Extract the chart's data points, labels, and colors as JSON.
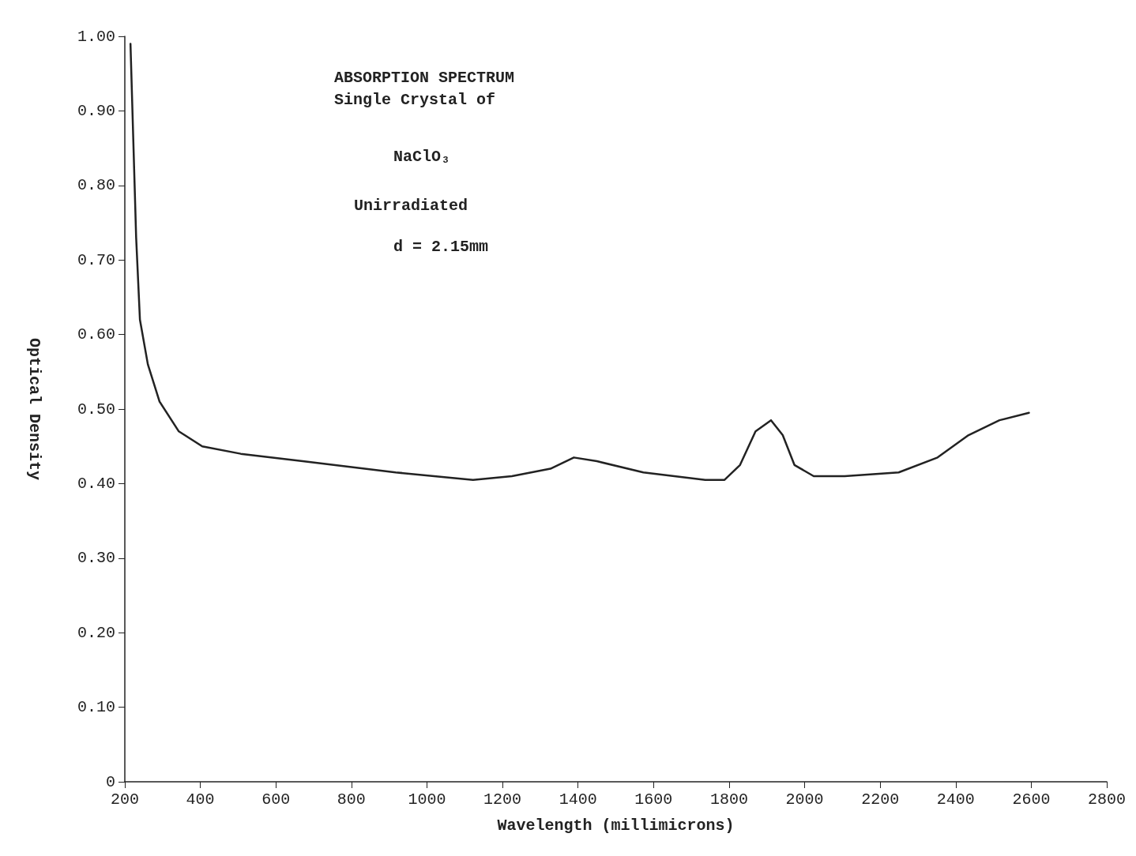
{
  "chart_data": {
    "type": "line",
    "title": "ABSORPTION SPECTRUM",
    "subtitle": "Single Crystal of",
    "annotations": [
      "NaClO₃",
      "Unirradiated",
      "d = 2.15mm"
    ],
    "xlabel": "Wavelength (millimicrons)",
    "ylabel": "Optical Density",
    "x": [
      215,
      230,
      240,
      261,
      292,
      343,
      405,
      507,
      671,
      917,
      1122,
      1225,
      1327,
      1389,
      1450,
      1573,
      1737,
      1788,
      1829,
      1870,
      1911,
      1942,
      1973,
      2024,
      2106,
      2249,
      2352,
      2434,
      2516,
      2594
    ],
    "series": [
      {
        "color": "#222222",
        "values": [
          0.99,
          0.73,
          0.62,
          0.56,
          0.51,
          0.47,
          0.45,
          0.44,
          0.43,
          0.415,
          0.405,
          0.41,
          0.42,
          0.435,
          0.43,
          0.415,
          0.405,
          0.405,
          0.425,
          0.47,
          0.485,
          0.465,
          0.425,
          0.41,
          0.41,
          0.415,
          0.435,
          0.465,
          0.485,
          0.495
        ]
      }
    ],
    "xlim": [
      200,
      2800
    ],
    "xticks": [
      200,
      400,
      600,
      800,
      1000,
      1200,
      1400,
      1600,
      1800,
      2000,
      2200,
      2400,
      2600,
      2800
    ],
    "ylim": [
      0,
      1
    ],
    "yticks": [
      0,
      {
        "value": 0.1,
        "label": "0.10"
      },
      {
        "value": 0.2,
        "label": "0.20"
      },
      {
        "value": 0.3,
        "label": "0.30"
      },
      {
        "value": 0.4,
        "label": "0.40"
      },
      {
        "value": 0.5,
        "label": "0.50"
      },
      {
        "value": 0.6,
        "label": "0.60"
      },
      {
        "value": 0.7,
        "label": "0.70"
      },
      {
        "value": 0.8,
        "label": "0.80"
      },
      {
        "value": 0.9,
        "label": "0.90"
      },
      {
        "value": 1,
        "label": "1.00"
      }
    ],
    "grid": false,
    "marker": "none",
    "line_style": "solid"
  }
}
